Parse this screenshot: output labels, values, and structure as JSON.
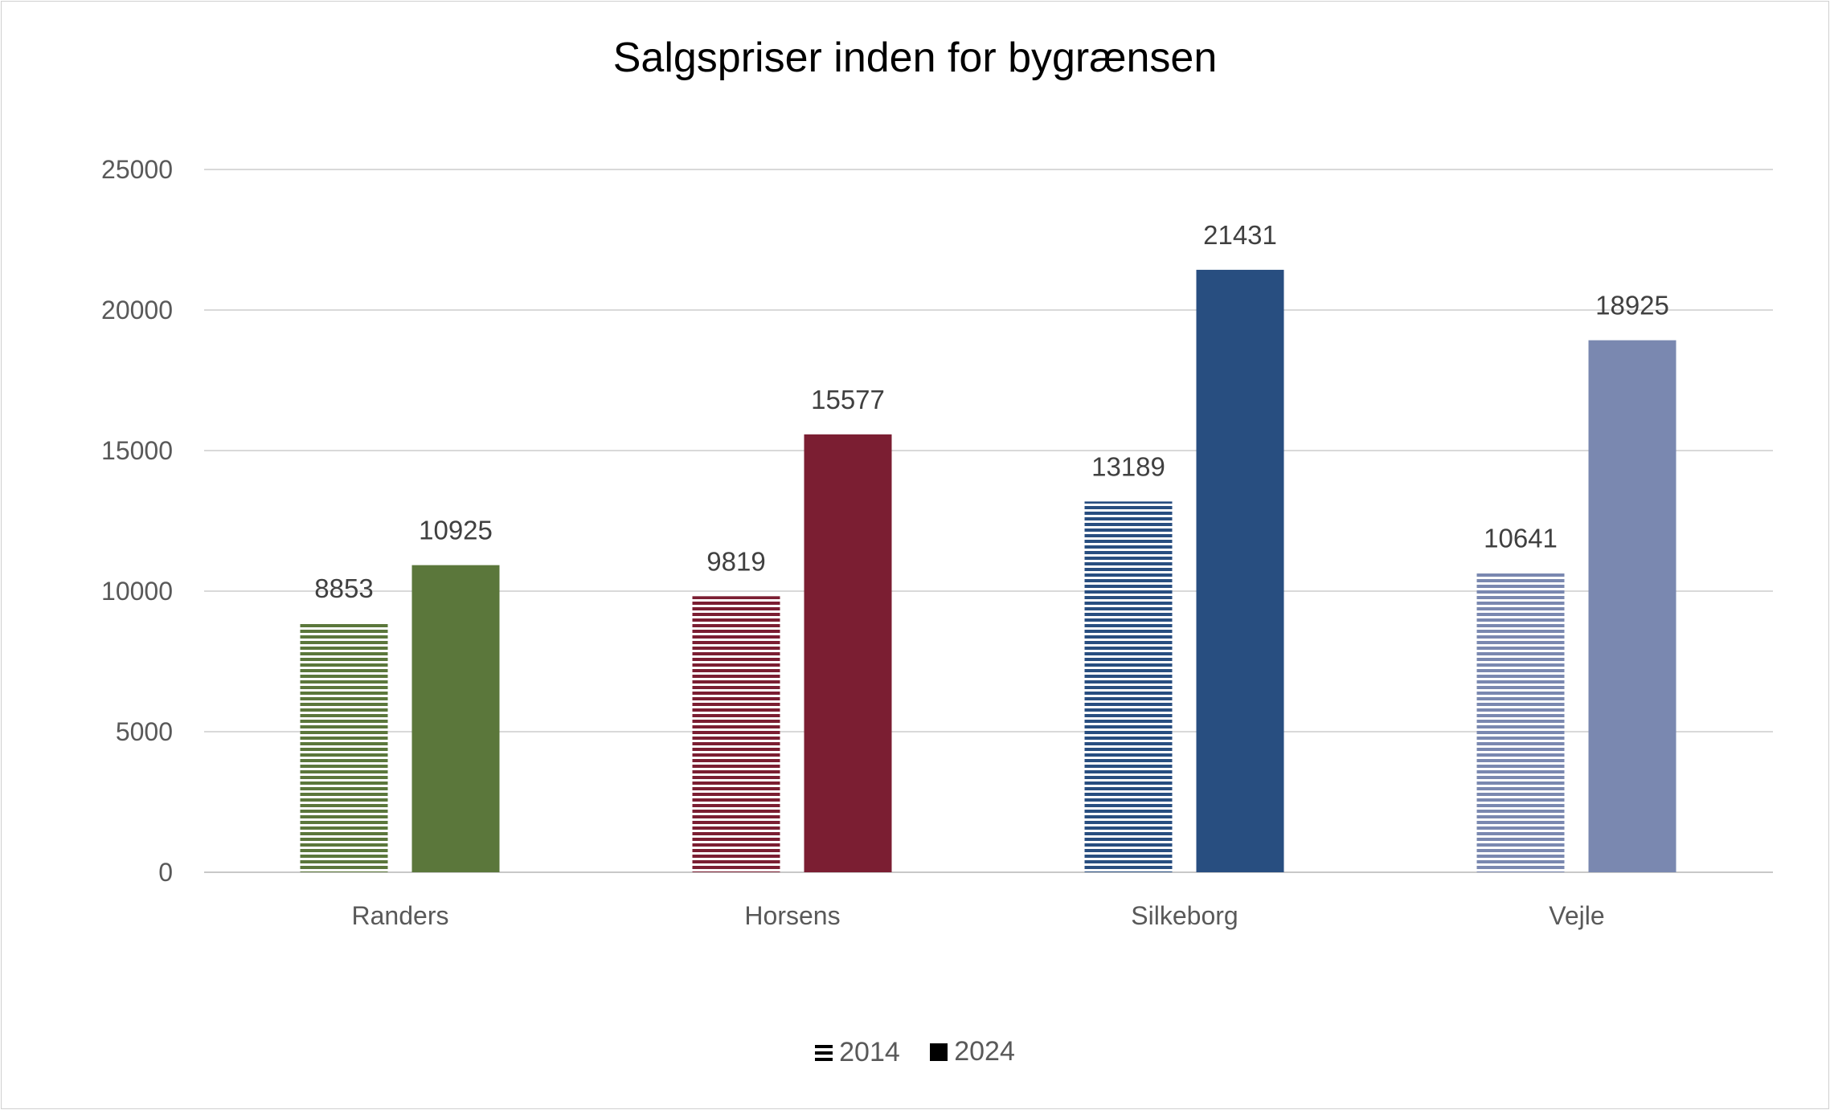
{
  "chart_data": {
    "type": "bar",
    "title": "Salgspriser inden for bygrænsen",
    "categories": [
      "Randers",
      "Horsens",
      "Silkeborg",
      "Vejle"
    ],
    "series": [
      {
        "name": "2014",
        "values": [
          8853,
          9819,
          13189,
          10641
        ],
        "pattern": "horizontal-stripes"
      },
      {
        "name": "2024",
        "values": [
          10925,
          15577,
          21431,
          18925
        ],
        "pattern": "solid"
      }
    ],
    "category_colors": [
      "#5B773B",
      "#7B1E32",
      "#284E80",
      "#7A88B0"
    ],
    "ylim": [
      0,
      25000
    ],
    "yticks": [
      0,
      5000,
      10000,
      15000,
      20000,
      25000
    ],
    "grid": true,
    "data_labels": true,
    "legend_position": "bottom",
    "xlabel": "",
    "ylabel": ""
  }
}
